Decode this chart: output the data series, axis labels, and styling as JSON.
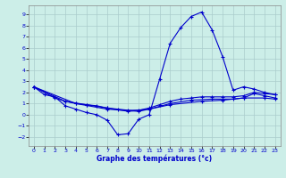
{
  "xlabel": "Graphe des températures (°c)",
  "bg_color": "#cceee8",
  "grid_color": "#aacccc",
  "line_color": "#0000cc",
  "xlim": [
    -0.5,
    23.5
  ],
  "ylim": [
    -2.8,
    9.8
  ],
  "xticks": [
    0,
    1,
    2,
    3,
    4,
    5,
    6,
    7,
    8,
    9,
    10,
    11,
    12,
    13,
    14,
    15,
    16,
    17,
    18,
    19,
    20,
    21,
    22,
    23
  ],
  "yticks": [
    -2,
    -1,
    0,
    1,
    2,
    3,
    4,
    5,
    6,
    7,
    8,
    9
  ],
  "s1_x": [
    0,
    1,
    2,
    3,
    4,
    5,
    6,
    7,
    8,
    9,
    10,
    11,
    12,
    13,
    14,
    15,
    16,
    17,
    18,
    19,
    20,
    21,
    22,
    23
  ],
  "s1_y": [
    2.5,
    1.8,
    1.6,
    0.8,
    0.5,
    0.2,
    0.0,
    -0.5,
    -1.8,
    -1.7,
    -0.4,
    0.0,
    3.2,
    6.4,
    7.8,
    8.8,
    9.2,
    7.6,
    5.2,
    2.2,
    2.5,
    2.3,
    2.0,
    1.8
  ],
  "s2_x": [
    0,
    2,
    3,
    4,
    5,
    6,
    7,
    8,
    9,
    10,
    11,
    12,
    13,
    14,
    15,
    16,
    17,
    18,
    19,
    20,
    21,
    22,
    23
  ],
  "s2_y": [
    2.5,
    1.5,
    1.2,
    1.0,
    0.9,
    0.8,
    0.6,
    0.5,
    0.4,
    0.4,
    0.6,
    0.9,
    1.2,
    1.4,
    1.5,
    1.6,
    1.6,
    1.6,
    1.6,
    1.7,
    2.0,
    1.9,
    1.8
  ],
  "s3_x": [
    0,
    3,
    5,
    7,
    9,
    11,
    13,
    15,
    17,
    19,
    20,
    21,
    22,
    23
  ],
  "s3_y": [
    2.5,
    1.2,
    0.9,
    0.6,
    0.3,
    0.5,
    1.0,
    1.3,
    1.4,
    1.4,
    1.5,
    1.9,
    1.7,
    1.5
  ],
  "s4_x": [
    0,
    4,
    7,
    10,
    13,
    16,
    18,
    20,
    22,
    23
  ],
  "s4_y": [
    2.5,
    1.0,
    0.5,
    0.3,
    0.9,
    1.2,
    1.3,
    1.5,
    1.5,
    1.4
  ]
}
